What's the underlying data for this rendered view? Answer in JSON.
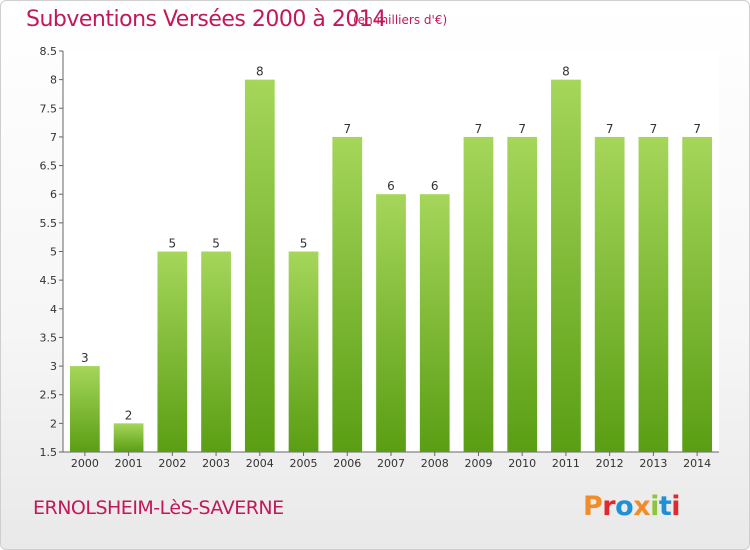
{
  "header": {
    "title": "Subventions Versées 2000 à 2014",
    "subtitle": "(en milliers d'€)"
  },
  "footer": {
    "commune": "ERNOLSHEIM-LèS-SAVERNE",
    "logo": "Proxiti",
    "logo_colors": [
      "#f28c28",
      "#e0282e",
      "#1f8fd6",
      "#f28c28",
      "#8cc63f",
      "#1f8fd6",
      "#e0282e"
    ]
  },
  "colors": {
    "bar_top": "#a5d65a",
    "bar_bottom": "#5a9e14",
    "title": "#c2185b"
  },
  "chart_data": {
    "type": "bar",
    "categories": [
      "2000",
      "2001",
      "2002",
      "2003",
      "2004",
      "2005",
      "2006",
      "2007",
      "2008",
      "2009",
      "2010",
      "2011",
      "2012",
      "2013",
      "2014"
    ],
    "values": [
      3,
      2,
      5,
      5,
      8,
      5,
      7,
      6,
      6,
      7,
      7,
      8,
      7,
      7,
      7
    ],
    "ylim": [
      1.5,
      8.5
    ],
    "yticks": [
      "1.5",
      "2",
      "2.5",
      "3",
      "3.5",
      "4",
      "4.5",
      "5",
      "5.5",
      "6",
      "6.5",
      "7",
      "7.5",
      "8",
      "8.5"
    ],
    "grid": false
  }
}
